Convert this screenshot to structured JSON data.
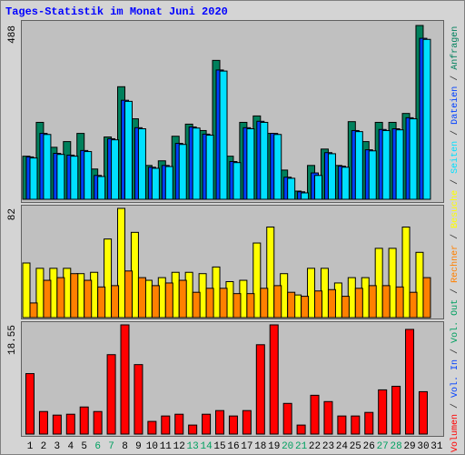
{
  "title": "Tages-Statistik im Monat Juni 2020",
  "legend_separator": " / ",
  "chart_data": [
    {
      "type": "bar",
      "ylim": [
        0,
        488
      ],
      "yticks": [
        488
      ],
      "series": [
        {
          "name": "Anfragen",
          "color": "#00805c",
          "values": [
            121,
            216,
            146,
            162,
            185,
            85,
            175,
            316,
            226,
            95,
            108,
            177,
            211,
            193,
            390,
            121,
            216,
            234,
            185,
            82,
            23,
            95,
            141,
            95,
            218,
            162,
            216,
            216,
            241,
            488,
            null
          ]
        },
        {
          "name": "Dateien",
          "color": "#0040ff",
          "values": [
            119,
            185,
            129,
            124,
            137,
            67,
            170,
            278,
            201,
            90,
            95,
            157,
            203,
            183,
            363,
            106,
            201,
            219,
            185,
            62,
            21,
            74,
            131,
            93,
            193,
            139,
            196,
            198,
            229,
            452,
            null
          ]
        },
        {
          "name": "Seiten",
          "color": "#00e0ff",
          "values": [
            116,
            182,
            126,
            121,
            134,
            64,
            167,
            275,
            198,
            87,
            92,
            154,
            200,
            180,
            360,
            103,
            198,
            216,
            182,
            59,
            18,
            67,
            128,
            90,
            190,
            136,
            193,
            195,
            226,
            449,
            null
          ]
        }
      ]
    },
    {
      "type": "bar",
      "ylim": [
        0,
        82
      ],
      "yticks": [
        82
      ],
      "series": [
        {
          "name": "Besuche",
          "color": "#ffff00",
          "values": [
            41,
            37,
            37,
            37,
            33,
            34,
            59,
            82,
            64,
            28,
            30,
            34,
            34,
            33,
            38,
            27,
            28,
            56,
            68,
            33,
            17,
            37,
            37,
            26,
            30,
            30,
            52,
            52,
            68,
            49,
            null
          ]
        },
        {
          "name": "Rechner",
          "color": "#ff8000",
          "values": [
            11,
            28,
            30,
            33,
            28,
            23,
            24,
            35,
            30,
            24,
            26,
            28,
            19,
            22,
            22,
            18,
            18,
            22,
            24,
            19,
            16,
            20,
            21,
            16,
            22,
            24,
            24,
            23,
            19,
            30,
            null
          ]
        }
      ]
    },
    {
      "type": "bar",
      "ylim": [
        0,
        18.55
      ],
      "yticks": [
        18.55
      ],
      "categories": [
        1,
        2,
        3,
        4,
        5,
        6,
        7,
        8,
        9,
        10,
        11,
        12,
        13,
        14,
        15,
        16,
        17,
        18,
        19,
        20,
        21,
        22,
        23,
        24,
        25,
        26,
        27,
        28,
        29,
        30,
        31
      ],
      "weekend_color": "#00a060",
      "weekends": [
        5,
        6,
        12,
        13,
        19,
        20,
        26,
        27
      ],
      "series": [
        {
          "name": "Volumen",
          "color": "#ff0000",
          "values": [
            10.27,
            3.83,
            3.22,
            3.37,
            4.6,
            3.83,
            13.49,
            18.55,
            11.8,
            2.15,
            3.07,
            3.37,
            1.53,
            3.37,
            3.99,
            3.07,
            3.99,
            15.18,
            18.55,
            5.21,
            1.53,
            6.59,
            5.52,
            3.07,
            3.07,
            3.68,
            7.51,
            8.12,
            17.78,
            7.2,
            null
          ]
        }
      ],
      "legend_only": [
        {
          "name": "Vol. In",
          "color": "#0040ff"
        },
        {
          "name": "Vol. Out",
          "color": "#00a060"
        }
      ]
    }
  ]
}
